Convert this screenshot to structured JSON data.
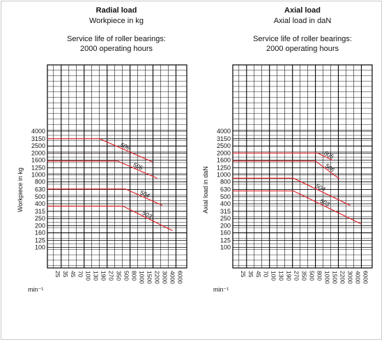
{
  "chart_data": [
    {
      "type": "line",
      "title": "Radial load",
      "subtitle": "Workpiece in kg",
      "caption_line1": "Service life of roller bearings:",
      "caption_line2": "2000 operating hours",
      "ylabel": "Workpiece in kg",
      "xunit": "min⁻¹",
      "y_ticks": [
        "100",
        "125",
        "160",
        "200",
        "250",
        "315",
        "400",
        "500",
        "630",
        "800",
        "1000",
        "1250",
        "1600",
        "2000",
        "2500",
        "3150",
        "4000"
      ],
      "x_ticks": [
        "25",
        "35",
        "45",
        "70",
        "100",
        "130",
        "190",
        "270",
        "350",
        "500",
        "800",
        "1000",
        "1500",
        "2200",
        "3000",
        "4000",
        "6000"
      ],
      "series": [
        {
          "name": "506",
          "points": [
            [
              15,
              3150
            ],
            [
              190,
              3150
            ],
            [
              2200,
              1500
            ]
          ]
        },
        {
          "name": "505",
          "points": [
            [
              15,
              1550
            ],
            [
              400,
              1550
            ],
            [
              2600,
              900
            ]
          ]
        },
        {
          "name": "504",
          "points": [
            [
              15,
              640
            ],
            [
              600,
              640
            ],
            [
              3200,
              380
            ]
          ]
        },
        {
          "name": "503",
          "points": [
            [
              15,
              370
            ],
            [
              520,
              370
            ],
            [
              5000,
              170
            ]
          ]
        }
      ],
      "line_color": "#e0242a"
    },
    {
      "type": "line",
      "title": "Axial load",
      "subtitle": "Axial load in daN",
      "caption_line1": "Service life of roller bearings:",
      "caption_line2": "2000 operating hours",
      "ylabel": "Axial load in daN",
      "xunit": "min⁻¹",
      "y_ticks": [
        "100",
        "125",
        "160",
        "200",
        "250",
        "315",
        "400",
        "500",
        "630",
        "800",
        "1000",
        "1250",
        "1600",
        "2000",
        "2500",
        "3150",
        "4000"
      ],
      "x_ticks": [
        "25",
        "35",
        "45",
        "70",
        "100",
        "130",
        "190",
        "270",
        "350",
        "500",
        "800",
        "1000",
        "1500",
        "2200",
        "3000",
        "4000",
        "6000"
      ],
      "series": [
        {
          "name": "505",
          "points": [
            [
              15,
              2000
            ],
            [
              850,
              2000
            ],
            [
              1700,
              1580
            ]
          ]
        },
        {
          "name": "506",
          "points": [
            [
              15,
              1550
            ],
            [
              800,
              1550
            ],
            [
              2300,
              880
            ]
          ]
        },
        {
          "name": "504",
          "points": [
            [
              15,
              900
            ],
            [
              280,
              900
            ],
            [
              3500,
              380
            ]
          ]
        },
        {
          "name": "503",
          "points": [
            [
              15,
              600
            ],
            [
              280,
              600
            ],
            [
              6000,
              210
            ]
          ]
        }
      ],
      "line_color": "#e0242a"
    }
  ]
}
